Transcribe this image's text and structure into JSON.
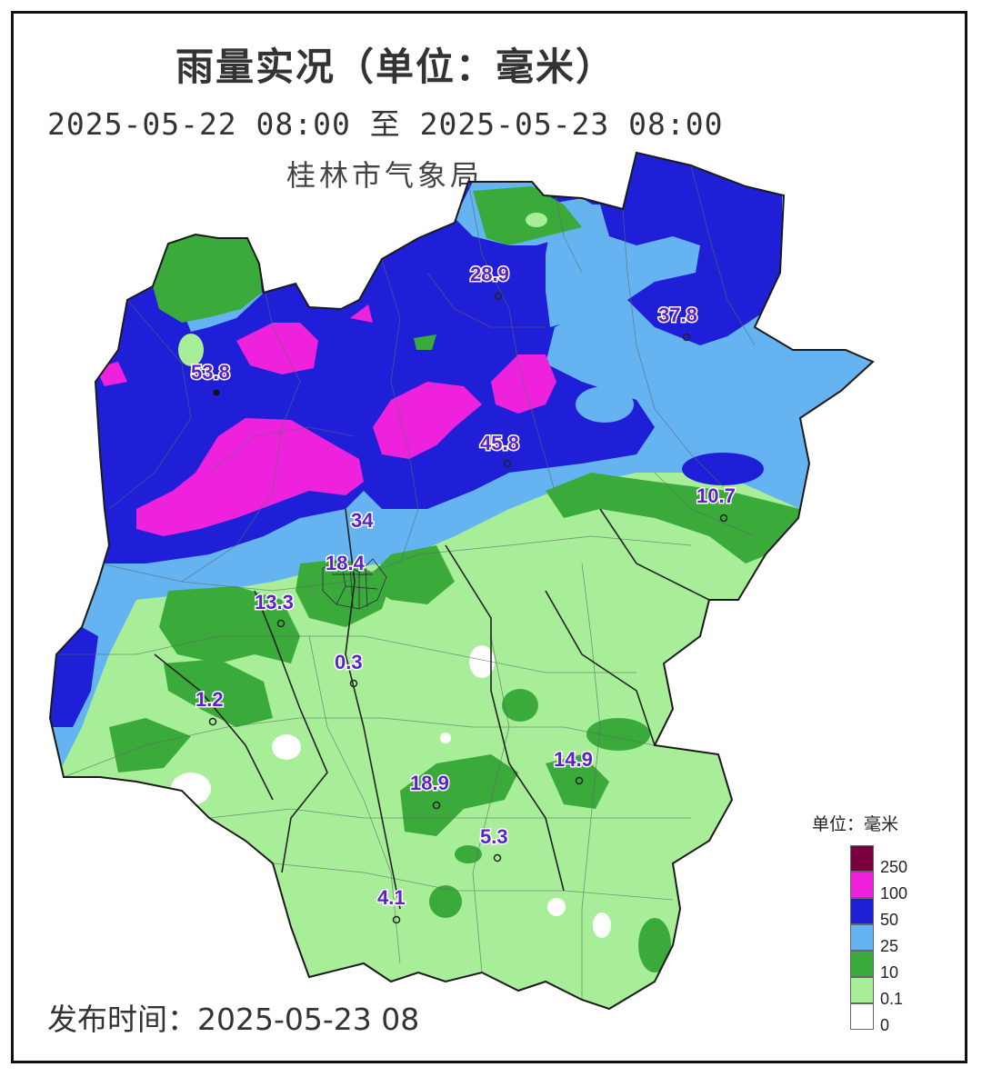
{
  "title": "雨量实况（单位：毫米）",
  "period": "2025-05-22 08:00 至 2025-05-23 08:00",
  "agency": "桂林市气象局",
  "issued": "发布时间：2025-05-23 08",
  "legend": {
    "title": "单位：毫米",
    "items": [
      {
        "label": "250",
        "color": "#7a0040"
      },
      {
        "label": "100",
        "color": "#ee22dd"
      },
      {
        "label": "50",
        "color": "#1f1fd8"
      },
      {
        "label": "25",
        "color": "#66b3f2"
      },
      {
        "label": "10",
        "color": "#3aaa3a"
      },
      {
        "label": "0.1",
        "color": "#a8ee98"
      },
      {
        "label": "0",
        "color": "#ffffff"
      }
    ]
  },
  "stations": [
    {
      "value": "53.8",
      "dot": "dark"
    },
    {
      "value": "28.9",
      "dot": "hollow"
    },
    {
      "value": "37.8",
      "dot": "hollow"
    },
    {
      "value": "45.8",
      "dot": "hollow"
    },
    {
      "value": "10.7",
      "dot": "hollow"
    },
    {
      "value": "34",
      "dot": "none"
    },
    {
      "value": "18.4",
      "dot": "none"
    },
    {
      "value": "13.3",
      "dot": "hollow"
    },
    {
      "value": "0.3",
      "dot": "hollow"
    },
    {
      "value": "1.2",
      "dot": "hollow"
    },
    {
      "value": "18.9",
      "dot": "hollow"
    },
    {
      "value": "14.9",
      "dot": "hollow"
    },
    {
      "value": "5.3",
      "dot": "hollow"
    },
    {
      "value": "4.1",
      "dot": "hollow"
    }
  ]
}
